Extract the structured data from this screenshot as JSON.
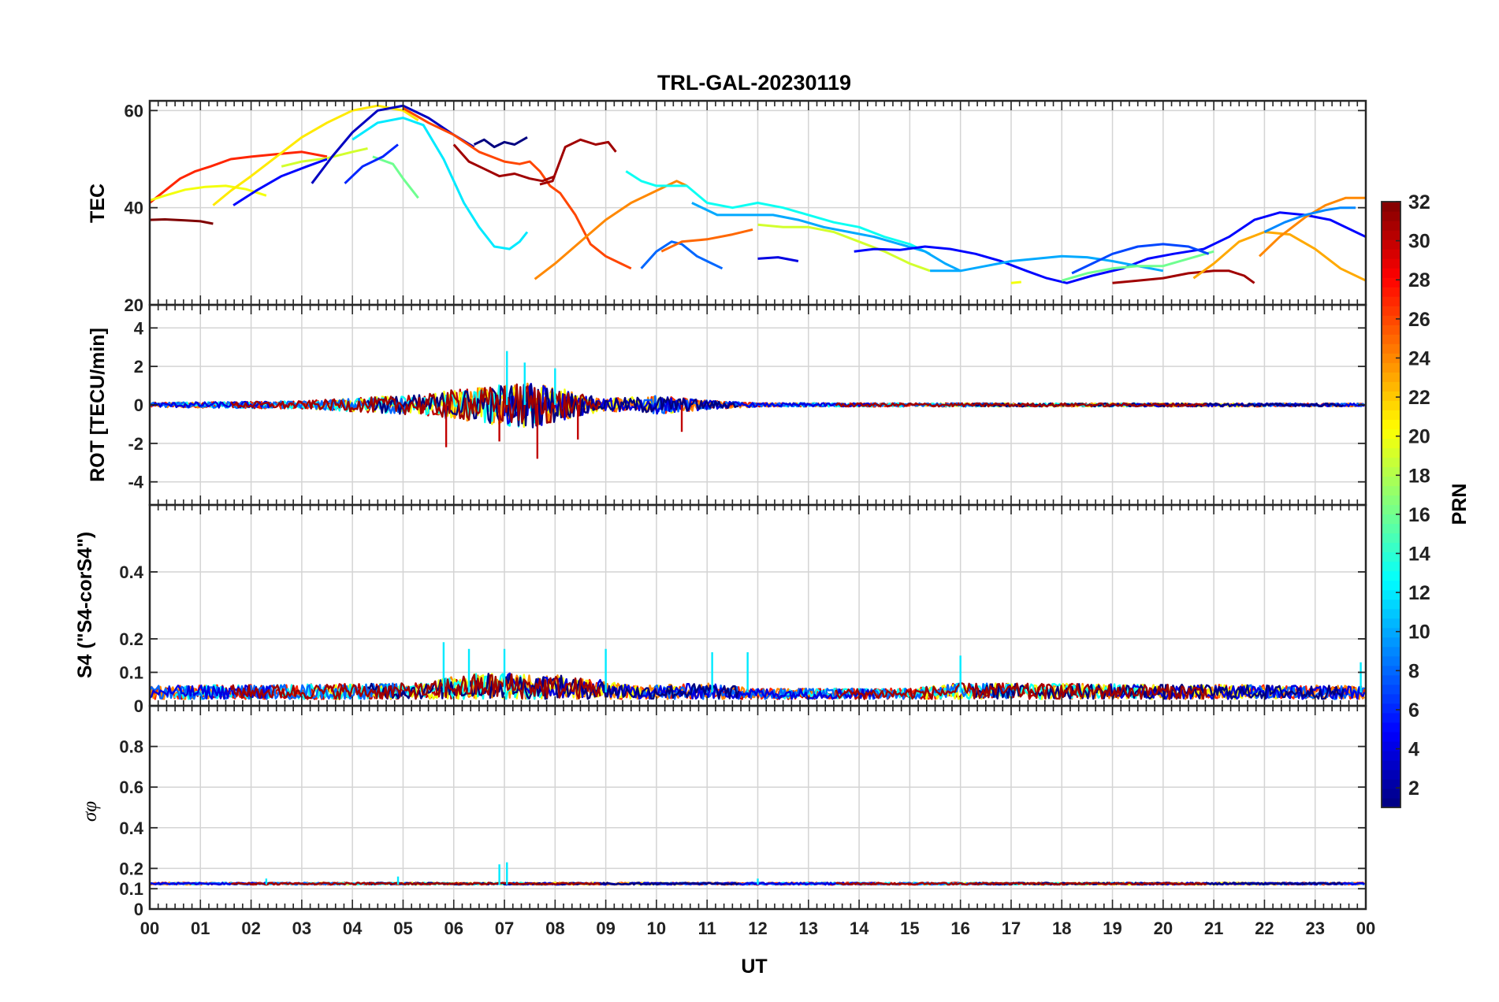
{
  "chart_data": {
    "type": "line",
    "title": "TRL-GAL-20230119",
    "xlabel": "UT",
    "x_ticks": [
      "00",
      "01",
      "02",
      "03",
      "04",
      "05",
      "06",
      "07",
      "08",
      "09",
      "10",
      "11",
      "12",
      "13",
      "14",
      "15",
      "16",
      "17",
      "18",
      "19",
      "20",
      "21",
      "22",
      "23",
      "00"
    ],
    "xlim": [
      0,
      24
    ],
    "grid": true,
    "colorbar": {
      "label": "PRN",
      "range": [
        1,
        32
      ],
      "ticks": [
        2,
        4,
        6,
        8,
        10,
        12,
        14,
        16,
        18,
        20,
        22,
        24,
        26,
        28,
        30,
        32
      ],
      "colormap": "jet"
    },
    "panels": [
      {
        "name": "tec",
        "ylabel": "TEC",
        "ylim": [
          20,
          62
        ],
        "yticks": [
          20,
          40,
          60
        ],
        "series": [
          {
            "prn": 32,
            "x": [
              0,
              0.3,
              0.7,
              1.0,
              1.25
            ],
            "y": [
              37.5,
              37.6,
              37.4,
              37.2,
              36.7
            ]
          },
          {
            "prn": 27,
            "x": [
              0,
              0.3,
              0.6,
              0.9,
              1.2,
              1.6,
              2.0,
              2.5,
              3.0,
              3.5
            ],
            "y": [
              41,
              43.5,
              46,
              47.5,
              48.5,
              50,
              50.5,
              51,
              51.5,
              50.5
            ]
          },
          {
            "prn": 20,
            "x": [
              0,
              0.3,
              0.7,
              1.1,
              1.5,
              1.9,
              2.3
            ],
            "y": [
              41.5,
              42.5,
              43.7,
              44.3,
              44.5,
              43.8,
              42.5
            ]
          },
          {
            "prn": 21,
            "x": [
              1.25,
              1.6,
              2.0,
              2.5,
              3.0,
              3.5,
              4.0,
              4.5,
              5.0,
              5.3
            ],
            "y": [
              40.5,
              43.5,
              46.5,
              50.5,
              54.5,
              57.5,
              60,
              61,
              60,
              58
            ]
          },
          {
            "prn": 19,
            "x": [
              2.6,
              3.0,
              3.5,
              4.0,
              4.3
            ],
            "y": [
              48.5,
              49.5,
              50.2,
              51.5,
              52.2
            ]
          },
          {
            "prn": 16,
            "x": [
              4.4,
              4.8,
              5.0,
              5.3
            ],
            "y": [
              50.5,
              49,
              46,
              42
            ]
          },
          {
            "prn": 5,
            "x": [
              1.65,
              2.1,
              2.6,
              3.1,
              3.5
            ],
            "y": [
              40.5,
              43.5,
              46.5,
              48.5,
              50
            ]
          },
          {
            "prn": 6,
            "x": [
              3.85,
              4.2,
              4.6,
              4.9
            ],
            "y": [
              45,
              48.5,
              50.5,
              53
            ]
          },
          {
            "prn": 3,
            "x": [
              3.2,
              3.6,
              4.0,
              4.5,
              5.0,
              5.5,
              6.0,
              6.4
            ],
            "y": [
              45,
              50.5,
              55.5,
              60,
              61,
              58.5,
              55,
              52.5
            ]
          },
          {
            "prn": 1,
            "x": [
              6.4,
              6.6,
              6.8,
              7.0,
              7.2,
              7.45
            ],
            "y": [
              53,
              54,
              52.5,
              53.5,
              53,
              54.5
            ]
          },
          {
            "prn": 12,
            "x": [
              4.0,
              4.5,
              5.0,
              5.4,
              5.8,
              6.2,
              6.5,
              6.8,
              7.1,
              7.3,
              7.45
            ],
            "y": [
              54,
              57.5,
              58.5,
              57,
              50,
              41,
              36,
              32,
              31.5,
              33,
              35
            ]
          },
          {
            "prn": 26,
            "x": [
              5.0,
              5.5,
              6.0,
              6.5,
              7.0,
              7.3,
              7.5,
              7.7,
              7.9,
              8.1,
              8.4,
              8.7,
              9.0,
              9.3,
              9.5
            ],
            "y": [
              60.5,
              57.5,
              55,
              51.5,
              49.5,
              49,
              49.5,
              47.5,
              44.5,
              43,
              38.5,
              32.5,
              30,
              28.5,
              27.5
            ]
          },
          {
            "prn": 31,
            "x": [
              6.0,
              6.3,
              6.6,
              6.9,
              7.2,
              7.5,
              7.75,
              8.0
            ],
            "y": [
              53,
              49.5,
              48,
              46.5,
              47,
              46,
              45.5,
              46.5
            ]
          },
          {
            "prn": 31,
            "x": [
              7.7,
              7.95,
              8.2,
              8.5,
              8.8,
              9.05,
              9.2
            ],
            "y": [
              44.8,
              45.5,
              52.5,
              54,
              53,
              53.5,
              51.5
            ]
          },
          {
            "prn": 24,
            "x": [
              7.6,
              8.0,
              8.5,
              9.0,
              9.5,
              10.0,
              10.4,
              10.6
            ],
            "y": [
              25.3,
              28.5,
              33,
              37.5,
              41,
              43.5,
              45.5,
              44.5
            ]
          },
          {
            "prn": 13,
            "x": [
              9.4,
              9.7,
              10.0,
              10.3,
              10.6,
              11.0,
              11.5,
              12.0,
              12.5,
              13.0,
              13.5,
              14.0,
              14.5,
              15.0,
              15.4
            ],
            "y": [
              47.5,
              45.5,
              44.5,
              44.5,
              44.5,
              41,
              40,
              41,
              40,
              38.5,
              37,
              36,
              34,
              32.5,
              30.5
            ]
          },
          {
            "prn": 8,
            "x": [
              9.7,
              10.0,
              10.3,
              10.5,
              10.8,
              11.1,
              11.3
            ],
            "y": [
              27.5,
              31,
              33,
              32.5,
              30,
              28.5,
              27.5
            ]
          },
          {
            "prn": 25,
            "x": [
              10.1,
              10.5,
              11.0,
              11.5,
              11.9
            ],
            "y": [
              31,
              33,
              33.5,
              34.5,
              35.5
            ]
          },
          {
            "prn": 10,
            "x": [
              10.7,
              11.2,
              11.8,
              12.3,
              12.8,
              13.3,
              13.8,
              14.3,
              14.8,
              15.3,
              15.7,
              16.0
            ],
            "y": [
              41,
              38.5,
              38.5,
              38.5,
              37.5,
              36,
              35,
              34,
              32.5,
              31,
              28.5,
              27
            ]
          },
          {
            "prn": 19,
            "x": [
              12.0,
              12.5,
              13.0,
              13.5,
              14.0,
              14.5,
              15.0,
              15.4
            ],
            "y": [
              36.5,
              36,
              36,
              35,
              33,
              31,
              28.5,
              27
            ]
          },
          {
            "prn": 4,
            "x": [
              12.0,
              12.4,
              12.8
            ],
            "y": [
              29.5,
              29.8,
              29
            ]
          },
          {
            "prn": 5,
            "x": [
              13.9,
              14.3,
              14.8,
              15.3,
              15.8,
              16.3,
              16.8,
              17.3,
              17.7,
              18.1,
              18.6,
              19.2,
              19.7,
              20.2,
              20.8,
              21.3,
              21.8,
              22.3,
              22.8,
              23.3,
              23.8,
              24.0
            ],
            "y": [
              31,
              31.5,
              31.3,
              32,
              31.5,
              30.5,
              29,
              27,
              25.5,
              24.5,
              26,
              27.5,
              29.5,
              30.5,
              31.5,
              34,
              37.5,
              39,
              38.5,
              37.5,
              35,
              34
            ]
          },
          {
            "prn": 10,
            "x": [
              15.4,
              16.0,
              16.5,
              17.0,
              17.5,
              18.0,
              18.5,
              19.0,
              19.5,
              20.0
            ],
            "y": [
              27,
              27,
              28,
              29,
              29.5,
              30,
              29.8,
              29,
              28,
              27
            ]
          },
          {
            "prn": 20,
            "x": [
              17.0,
              17.2
            ],
            "y": [
              24.5,
              24.7
            ]
          },
          {
            "prn": 16,
            "x": [
              18.0,
              18.5,
              19.0,
              19.5,
              20.0,
              20.5,
              21.0
            ],
            "y": [
              25,
              26.5,
              27.5,
              28,
              28,
              29.5,
              31
            ]
          },
          {
            "prn": 7,
            "x": [
              18.2,
              18.6,
              19.0,
              19.5,
              20.0,
              20.5,
              20.9
            ],
            "y": [
              26.5,
              28.5,
              30.5,
              32,
              32.5,
              32,
              30.5
            ]
          },
          {
            "prn": 31,
            "x": [
              19.0,
              19.5,
              20.0,
              20.5,
              21.0,
              21.3,
              21.6,
              21.8
            ],
            "y": [
              24.5,
              25,
              25.5,
              26.5,
              27,
              27,
              26,
              24.5
            ]
          },
          {
            "prn": 23,
            "x": [
              20.6,
              21.0,
              21.5,
              22.0,
              22.5,
              23.0,
              23.5,
              24.0
            ],
            "y": [
              25.5,
              28.5,
              33,
              35,
              34.5,
              31.5,
              27.5,
              25
            ]
          },
          {
            "prn": 24,
            "x": [
              21.9,
              22.3,
              22.8,
              23.2,
              23.6,
              24.0
            ],
            "y": [
              30,
              34,
              38,
              40.5,
              42,
              42
            ]
          },
          {
            "prn": 9,
            "x": [
              22.0,
              22.4,
              22.8,
              23.2,
              23.5,
              23.8
            ],
            "y": [
              35,
              37,
              38.5,
              39.5,
              40,
              40
            ]
          }
        ]
      },
      {
        "name": "rot",
        "ylabel": "ROT [TECU/min]",
        "ylim": [
          -5.2,
          5.2
        ],
        "yticks": [
          -4,
          -2,
          0,
          2,
          4
        ],
        "noise_profile": {
          "hours": [
            0,
            3,
            5.5,
            6,
            6.5,
            7,
            7.5,
            8,
            8.5,
            9,
            9.5,
            10,
            11,
            12,
            24
          ],
          "amplitude": [
            0.15,
            0.25,
            0.7,
            1.0,
            1.1,
            1.4,
            1.5,
            1.2,
            0.7,
            0.4,
            0.5,
            0.6,
            0.3,
            0.12,
            0.1
          ]
        },
        "peaks": [
          [
            5.85,
            -2.2
          ],
          [
            6.9,
            -1.9
          ],
          [
            7.05,
            2.8
          ],
          [
            7.4,
            2.2
          ],
          [
            7.65,
            -2.8
          ],
          [
            8.0,
            1.9
          ],
          [
            8.45,
            -1.8
          ],
          [
            10.5,
            -1.4
          ]
        ]
      },
      {
        "name": "s4",
        "ylabel": "S4 (\"S4-corS4\")",
        "ylim": [
          0,
          0.6
        ],
        "yticks": [
          0,
          0.1,
          0.2,
          0.4
        ],
        "baseline": 0.04,
        "noise_profile": {
          "hours": [
            0,
            5.5,
            6,
            7,
            8,
            9,
            9.5,
            11,
            12,
            15,
            16,
            24
          ],
          "amplitude": [
            0.05,
            0.06,
            0.09,
            0.1,
            0.09,
            0.07,
            0.05,
            0.06,
            0.04,
            0.04,
            0.06,
            0.05
          ]
        },
        "peaks": [
          [
            5.8,
            0.19
          ],
          [
            6.3,
            0.17
          ],
          [
            7.0,
            0.17
          ],
          [
            9.0,
            0.17
          ],
          [
            11.1,
            0.16
          ],
          [
            11.8,
            0.16
          ],
          [
            16.0,
            0.15
          ],
          [
            23.9,
            0.13
          ]
        ]
      },
      {
        "name": "sigma-phi",
        "ylabel": "σφ",
        "ylim": [
          0,
          1
        ],
        "yticks": [
          0,
          0.1,
          0.2,
          0.4,
          0.6,
          0.8
        ],
        "baseline": 0.12,
        "noise_profile": {
          "hours": [
            0,
            24
          ],
          "amplitude": [
            0.01,
            0.01
          ]
        },
        "peaks": [
          [
            6.9,
            0.22
          ],
          [
            7.05,
            0.23
          ],
          [
            12.0,
            0.15
          ],
          [
            4.9,
            0.16
          ],
          [
            2.3,
            0.15
          ]
        ]
      }
    ]
  }
}
